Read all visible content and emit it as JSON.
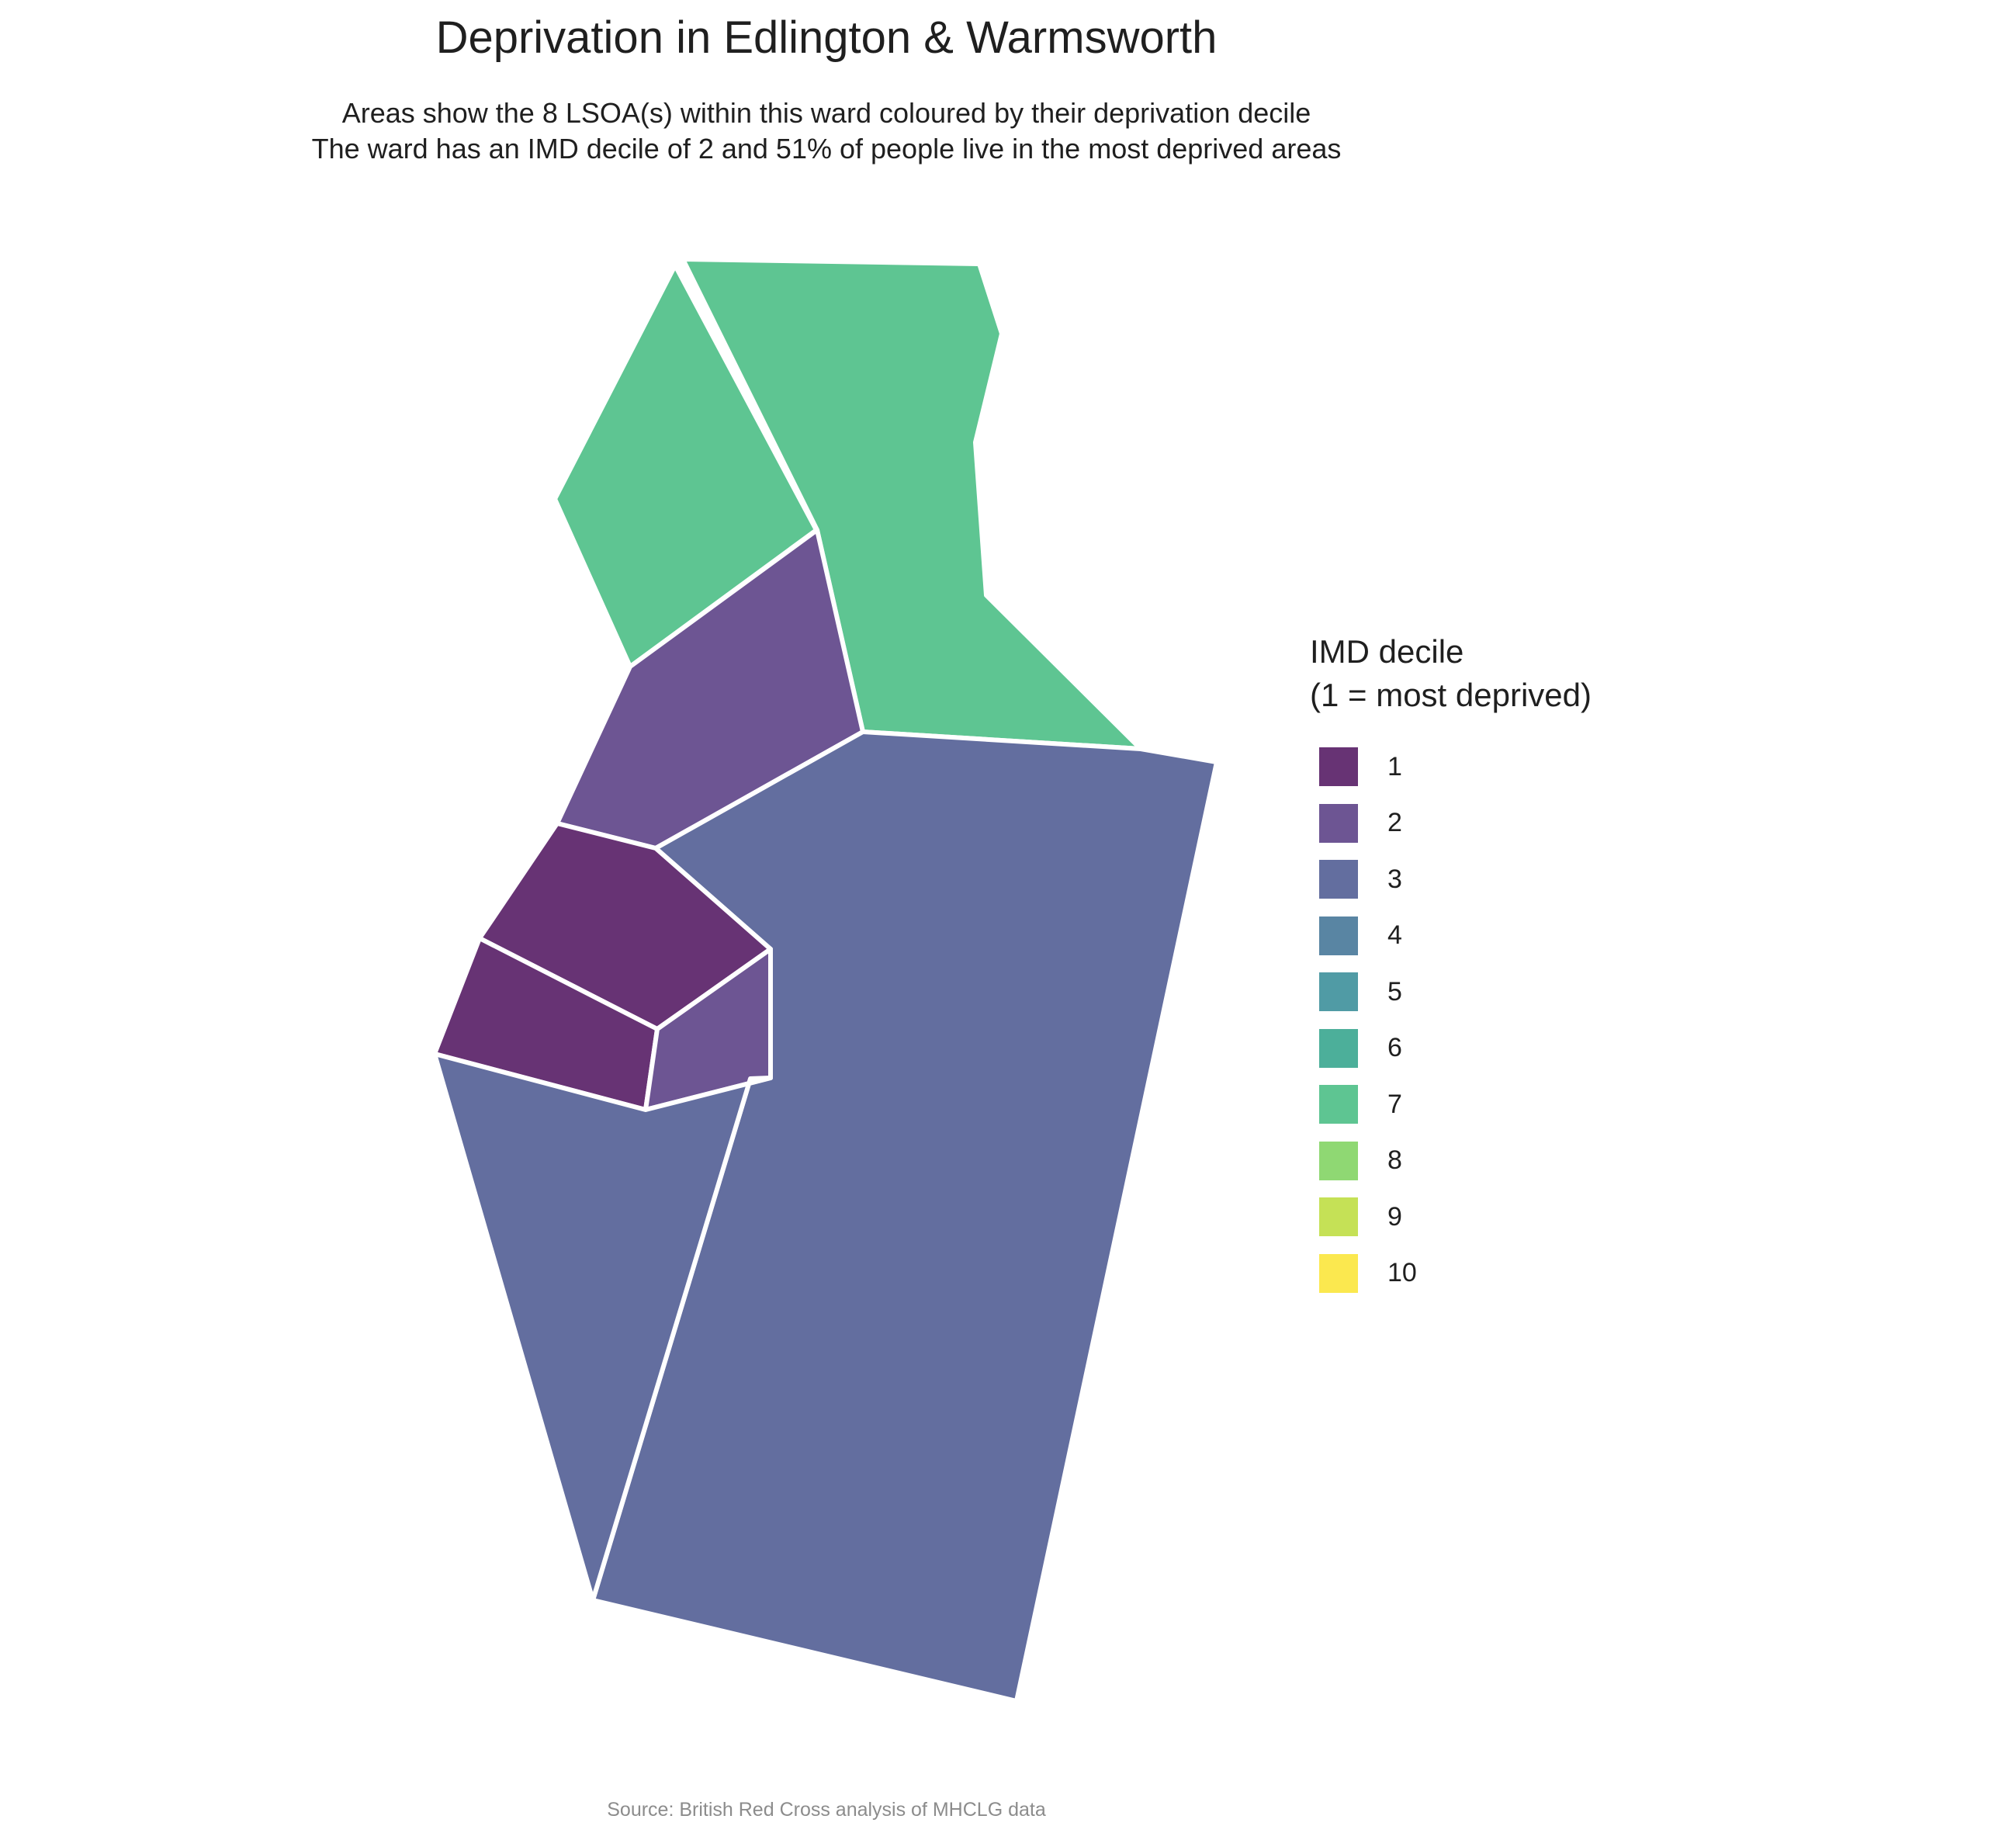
{
  "title": "Deprivation in Edlington & Warmsworth",
  "subtitle_lines": [
    "Areas show the 8 LSOA(s) within this ward coloured by their deprivation decile",
    "The ward has an IMD decile of 2 and 51% of people live in the most deprived areas"
  ],
  "legend": {
    "title_lines": [
      "IMD decile",
      "(1 = most deprived)"
    ],
    "items": [
      {
        "label": "1",
        "color": "#673374"
      },
      {
        "label": "2",
        "color": "#6d5593"
      },
      {
        "label": "3",
        "color": "#636e9f"
      },
      {
        "label": "4",
        "color": "#5985a3"
      },
      {
        "label": "5",
        "color": "#509ba5"
      },
      {
        "label": "6",
        "color": "#4caf9a"
      },
      {
        "label": "7",
        "color": "#5ec592"
      },
      {
        "label": "8",
        "color": "#8fd873"
      },
      {
        "label": "9",
        "color": "#c5e156"
      },
      {
        "label": "10",
        "color": "#fbe84f"
      }
    ]
  },
  "lsoa_areas": [
    {
      "decile": 7
    },
    {
      "decile": 7
    },
    {
      "decile": 2
    },
    {
      "decile": 3
    },
    {
      "decile": 1
    },
    {
      "decile": 1
    },
    {
      "decile": 2
    },
    {
      "decile": 3
    }
  ],
  "caption": "Source: British Red Cross analysis of MHCLG data"
}
